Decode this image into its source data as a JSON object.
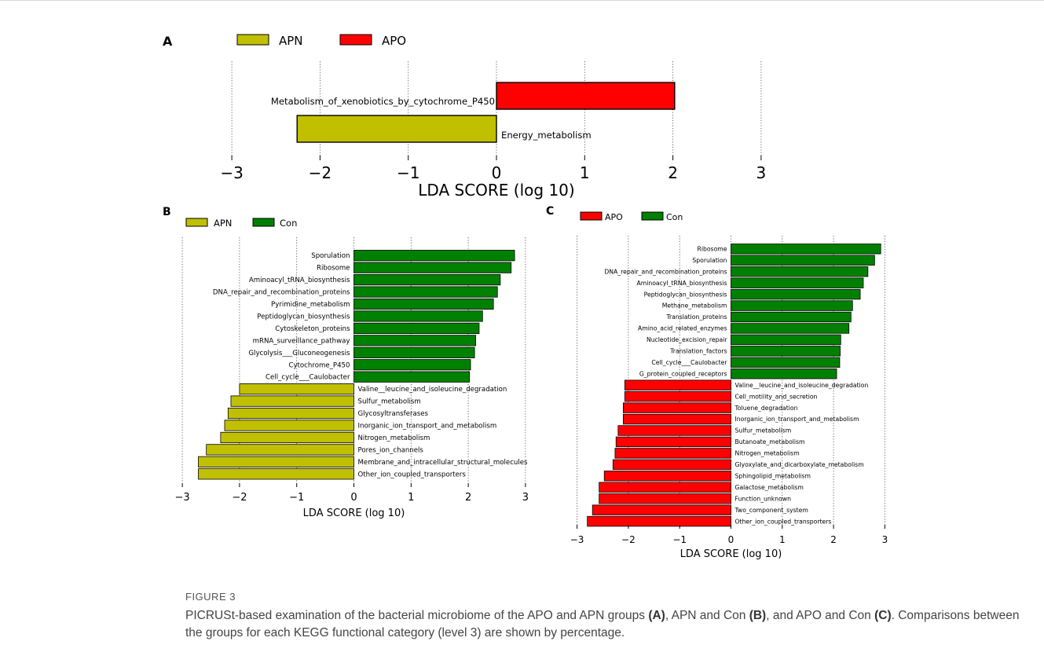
{
  "figure": {
    "label": "FIGURE 3",
    "caption": [
      {
        "t": "PICRUSt-based examination of the bacterial microbiome of the APO and APN groups ",
        "b": false
      },
      {
        "t": "(A)",
        "b": true
      },
      {
        "t": ", APN and Con ",
        "b": false
      },
      {
        "t": "(B)",
        "b": true
      },
      {
        "t": ", and APO and Con ",
        "b": false
      },
      {
        "t": "(C)",
        "b": true
      },
      {
        "t": ". Comparisons between the groups for each KEGG functional category (level 3) are shown by percentage.",
        "b": false
      }
    ]
  },
  "colors": {
    "APN": "#c0c000",
    "APO": "#ff0000",
    "Con": "#008000"
  },
  "chart_data": [
    {
      "panel": "A",
      "type": "bar",
      "orientation": "horizontal",
      "legend": [
        "APN",
        "APO"
      ],
      "legend_placement": "top-left",
      "xlabel": "LDA SCORE (log 10)",
      "xlim": [
        -3,
        3
      ],
      "xticks": [
        -3,
        -2,
        -1,
        0,
        1,
        2,
        3
      ],
      "xtick_labels": [
        "−3",
        "−2",
        "−1",
        "0",
        "1",
        "2",
        "3"
      ],
      "grid": "vertical dotted",
      "bars": [
        {
          "label": "Metabolism_of_xenobiotics_by_cytochrome_P450",
          "value": 2.02,
          "group": "APO"
        },
        {
          "label": "Energy_metabolism",
          "value": -2.26,
          "group": "APN"
        }
      ]
    },
    {
      "panel": "B",
      "type": "bar",
      "orientation": "horizontal",
      "legend": [
        "APN",
        "Con"
      ],
      "legend_placement": "top-left",
      "xlabel": "LDA SCORE (log 10)",
      "xlim": [
        -3,
        3
      ],
      "xticks": [
        -3,
        -2,
        -1,
        0,
        1,
        2,
        3
      ],
      "xtick_labels": [
        "−3",
        "−2",
        "−1",
        "0",
        "1",
        "2",
        "3"
      ],
      "grid": "vertical dotted",
      "bars": [
        {
          "label": "Sporulation",
          "value": 2.81,
          "group": "Con"
        },
        {
          "label": "Ribosome",
          "value": 2.75,
          "group": "Con"
        },
        {
          "label": "Aminoacyl_tRNA_biosynthesis",
          "value": 2.56,
          "group": "Con"
        },
        {
          "label": "DNA_repair_and_recombination_proteins",
          "value": 2.51,
          "group": "Con"
        },
        {
          "label": "Pyrimidine_metabolism",
          "value": 2.44,
          "group": "Con"
        },
        {
          "label": "Peptidoglycan_biosynthesis",
          "value": 2.25,
          "group": "Con"
        },
        {
          "label": "Cytoskeleton_proteins",
          "value": 2.19,
          "group": "Con"
        },
        {
          "label": "mRNA_surveillance_pathway",
          "value": 2.13,
          "group": "Con"
        },
        {
          "label": "Glycolysis___Gluconeogenesis",
          "value": 2.11,
          "group": "Con"
        },
        {
          "label": "Cytochrome_P450",
          "value": 2.04,
          "group": "Con"
        },
        {
          "label": "Cell_cycle___Caulobacter",
          "value": 2.02,
          "group": "Con"
        },
        {
          "label": "Valine__leucine_and_isoleucine_degradation",
          "value": -2.0,
          "group": "APN"
        },
        {
          "label": "Sulfur_metabolism",
          "value": -2.15,
          "group": "APN"
        },
        {
          "label": "Glycosyltransferases",
          "value": -2.2,
          "group": "APN"
        },
        {
          "label": "Inorganic_ion_transport_and_metabolism",
          "value": -2.26,
          "group": "APN"
        },
        {
          "label": "Nitrogen_metabolism",
          "value": -2.33,
          "group": "APN"
        },
        {
          "label": "Pores_ion_channels",
          "value": -2.58,
          "group": "APN"
        },
        {
          "label": "Membrane_and_intracellular_structural_molecules",
          "value": -2.72,
          "group": "APN"
        },
        {
          "label": "Other_ion_coupled_transporters",
          "value": -2.72,
          "group": "APN"
        }
      ]
    },
    {
      "panel": "C",
      "type": "bar",
      "orientation": "horizontal",
      "legend": [
        "APO",
        "Con"
      ],
      "legend_placement": "top-left",
      "xlabel": "LDA SCORE (log 10)",
      "xlim": [
        -3,
        3
      ],
      "xticks": [
        -3,
        -2,
        -1,
        0,
        1,
        2,
        3
      ],
      "xtick_labels": [
        "−3",
        "−2",
        "−1",
        "0",
        "1",
        "2",
        "3"
      ],
      "grid": "vertical dotted",
      "bars": [
        {
          "label": "Ribosome",
          "value": 2.92,
          "group": "Con"
        },
        {
          "label": "Sporulation",
          "value": 2.8,
          "group": "Con"
        },
        {
          "label": "DNA_repair_and_recombination_proteins",
          "value": 2.67,
          "group": "Con"
        },
        {
          "label": "Aminoacyl_tRNA_biosynthesis",
          "value": 2.58,
          "group": "Con"
        },
        {
          "label": "Peptidoglycan_biosynthesis",
          "value": 2.52,
          "group": "Con"
        },
        {
          "label": "Methane_metabolism",
          "value": 2.37,
          "group": "Con"
        },
        {
          "label": "Translation_proteins",
          "value": 2.34,
          "group": "Con"
        },
        {
          "label": "Amino_acid_related_enzymes",
          "value": 2.3,
          "group": "Con"
        },
        {
          "label": "Nucleotide_excision_repair",
          "value": 2.14,
          "group": "Con"
        },
        {
          "label": "Translation_factors",
          "value": 2.13,
          "group": "Con"
        },
        {
          "label": "Cell_cycle___Caulobacter",
          "value": 2.12,
          "group": "Con"
        },
        {
          "label": "G_protein_coupled_receptors",
          "value": 2.06,
          "group": "Con"
        },
        {
          "label": "Valine__leucine_and_isoleucine_degradation",
          "value": -2.07,
          "group": "APO"
        },
        {
          "label": "Cell_motility_and_secretion",
          "value": -2.07,
          "group": "APO"
        },
        {
          "label": "Toluene_degradation",
          "value": -2.1,
          "group": "APO"
        },
        {
          "label": "Inorganic_ion_transport_and_metabolism",
          "value": -2.1,
          "group": "APO"
        },
        {
          "label": "Sulfur_metabolism",
          "value": -2.2,
          "group": "APO"
        },
        {
          "label": "Butanoate_metabolism",
          "value": -2.24,
          "group": "APO"
        },
        {
          "label": "Nitrogen_metabolism",
          "value": -2.26,
          "group": "APO"
        },
        {
          "label": "Glyoxylate_and_dicarboxylate_metabolism",
          "value": -2.3,
          "group": "APO"
        },
        {
          "label": "Sphingolipid_metabolism",
          "value": -2.47,
          "group": "APO"
        },
        {
          "label": "Galactose_metabolism",
          "value": -2.57,
          "group": "APO"
        },
        {
          "label": "Function_unknown",
          "value": -2.57,
          "group": "APO"
        },
        {
          "label": "Two_component_system",
          "value": -2.7,
          "group": "APO"
        },
        {
          "label": "Other_ion_coupled_transporters",
          "value": -2.8,
          "group": "APO"
        }
      ]
    }
  ]
}
